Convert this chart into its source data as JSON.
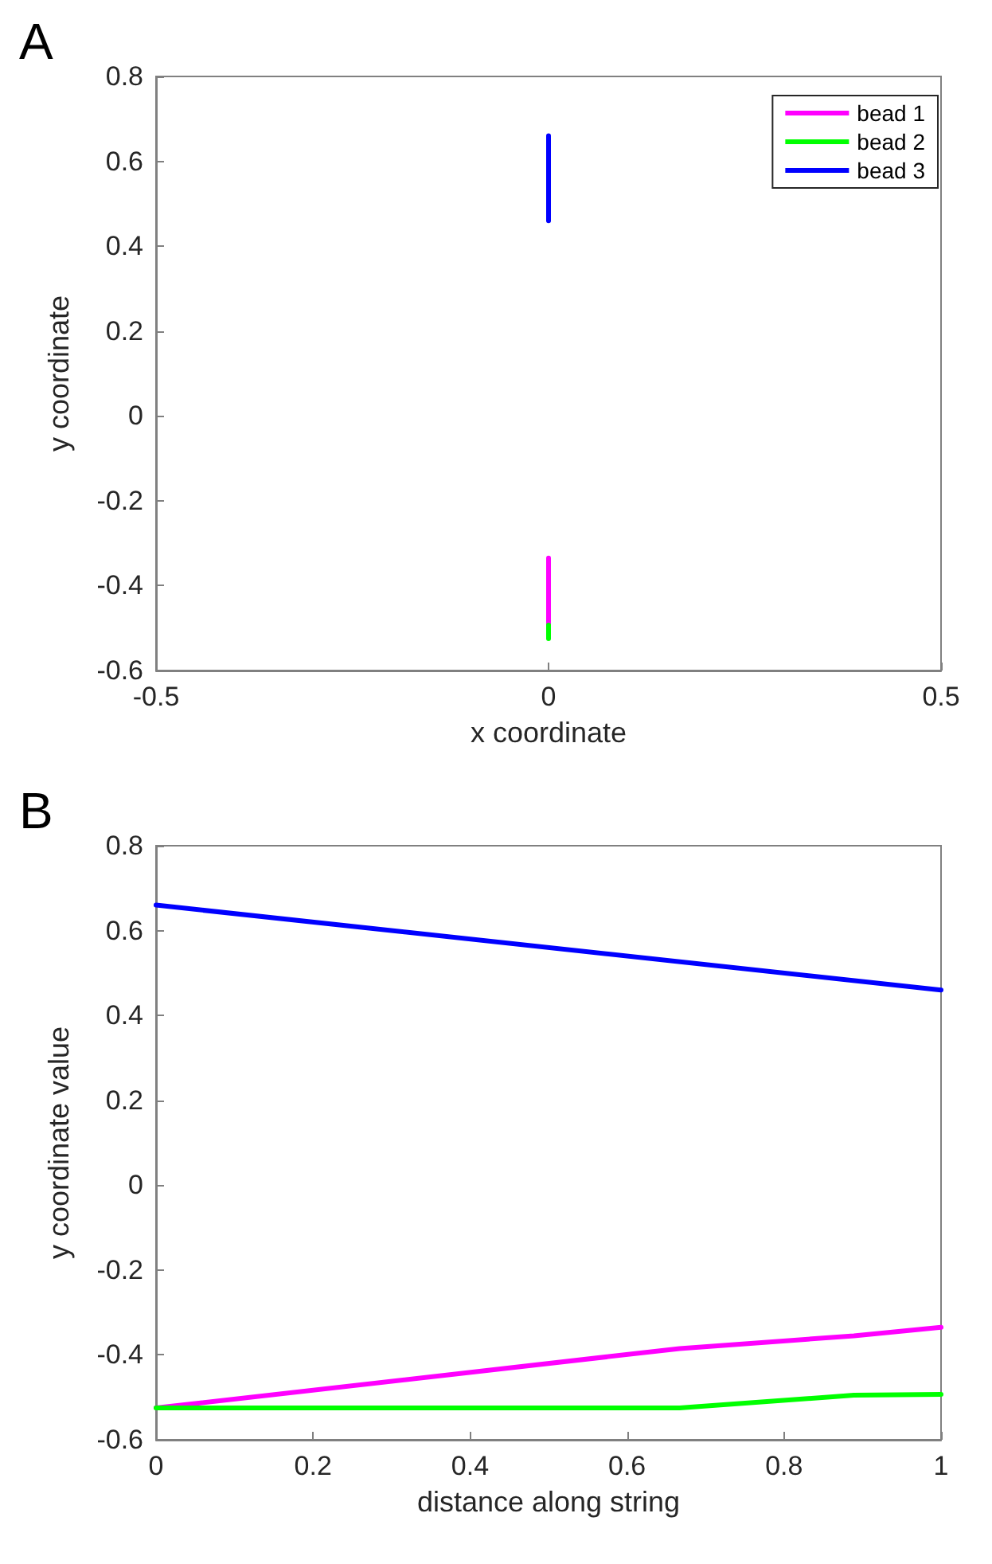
{
  "chart_data": [
    {
      "type": "line",
      "annotations": [
        "A"
      ],
      "xlabel": "x coordinate",
      "ylabel": "y coordinate",
      "xlim": [
        -0.5,
        0.5
      ],
      "xticks": [
        -0.5,
        0,
        0.5
      ],
      "ylim": [
        -0.6,
        0.8
      ],
      "yticks": [
        -0.6,
        -0.4,
        -0.2,
        0,
        0.2,
        0.4,
        0.6,
        0.8
      ],
      "grid": false,
      "legend": "top right",
      "marker": "none",
      "line_style": "solid",
      "series": [
        {
          "name": "bead 1",
          "color": "#ff00ff",
          "x": [
            0,
            0
          ],
          "values": [
            -0.493,
            -0.335
          ]
        },
        {
          "name": "bead 2",
          "color": "#00ff00",
          "x": [
            0,
            0
          ],
          "values": [
            -0.525,
            -0.493
          ]
        },
        {
          "name": "bead 3",
          "color": "#0000ff",
          "x": [
            0,
            0
          ],
          "values": [
            0.46,
            0.66
          ]
        }
      ]
    },
    {
      "type": "line",
      "annotations": [
        "B"
      ],
      "xlabel": "distance along string",
      "ylabel": "y coordinate value",
      "xlim": [
        0,
        1
      ],
      "xticks": [
        0,
        0.2,
        0.4,
        0.6,
        0.8,
        1
      ],
      "ylim": [
        -0.6,
        0.8
      ],
      "yticks": [
        -0.6,
        -0.4,
        -0.2,
        0,
        0.2,
        0.4,
        0.6,
        0.8
      ],
      "grid": false,
      "legend": false,
      "marker": "none",
      "line_style": "solid",
      "series": [
        {
          "color": "#ff00ff",
          "x": [
            0,
            0.667,
            0.889,
            1
          ],
          "values": [
            -0.525,
            -0.385,
            -0.355,
            -0.335
          ]
        },
        {
          "color": "#00ff00",
          "x": [
            0,
            0.667,
            0.889,
            1
          ],
          "values": [
            -0.525,
            -0.525,
            -0.495,
            -0.493
          ]
        },
        {
          "color": "#0000ff",
          "x": [
            0,
            1
          ],
          "values": [
            0.66,
            0.46
          ]
        }
      ]
    }
  ]
}
